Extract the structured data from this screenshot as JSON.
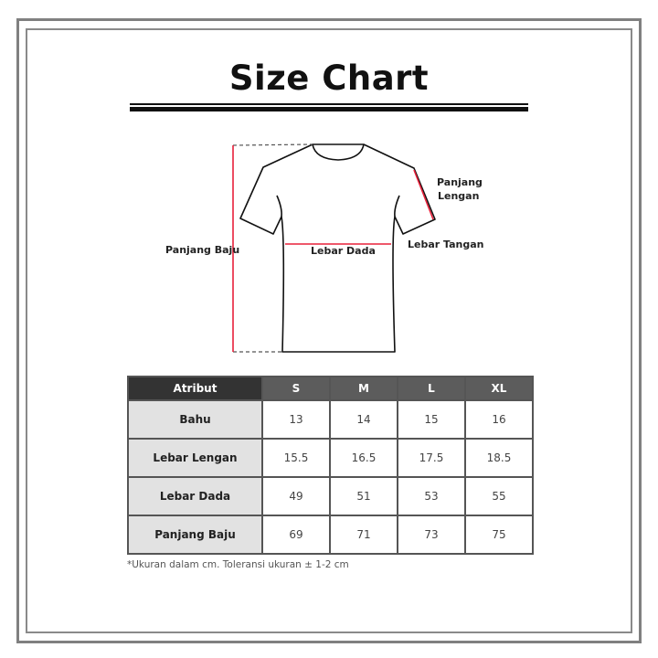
{
  "title": "Size Chart",
  "diagram": {
    "labels": {
      "panjang_baju": "Panjang Baju",
      "lebar_dada": "Lebar Dada",
      "panjang_lengan_1": "Panjang",
      "panjang_lengan_2": "Lengan",
      "lebar_tangan": "Lebar Tangan"
    },
    "colors": {
      "measure_line": "#e8203a",
      "outline": "#111111"
    }
  },
  "table": {
    "headers": [
      "Atribut",
      "S",
      "M",
      "L",
      "XL"
    ],
    "rows": [
      {
        "label": "Bahu",
        "values": [
          "13",
          "14",
          "15",
          "16"
        ]
      },
      {
        "label": "Lebar Lengan",
        "values": [
          "15.5",
          "16.5",
          "17.5",
          "18.5"
        ]
      },
      {
        "label": "Lebar Dada",
        "values": [
          "49",
          "51",
          "53",
          "55"
        ]
      },
      {
        "label": "Panjang Baju",
        "values": [
          "69",
          "71",
          "73",
          "75"
        ]
      }
    ]
  },
  "note": "*Ukuran dalam cm. Toleransi ukuran ± 1-2 cm"
}
